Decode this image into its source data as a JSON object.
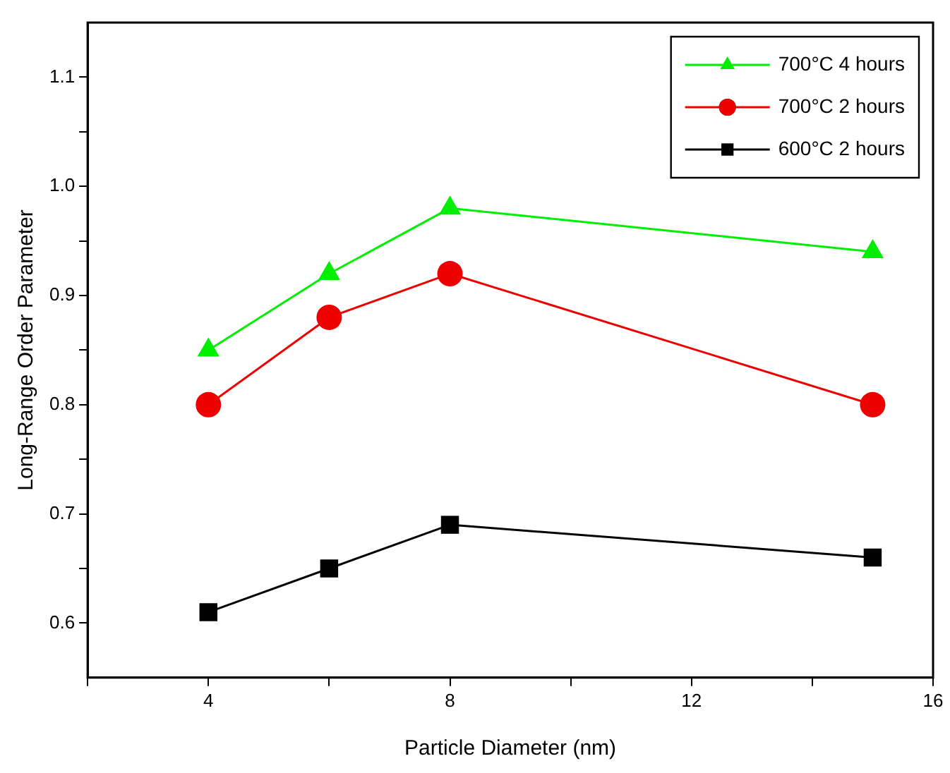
{
  "chart_data": {
    "type": "line",
    "xlabel": "Particle Diameter (nm)",
    "ylabel": "Long-Range Order Parameter",
    "x": [
      4,
      6,
      8,
      15
    ],
    "series": [
      {
        "name": "700°C 4 hours",
        "color": "#00ee00",
        "marker": "triangle",
        "values": [
          0.85,
          0.92,
          0.98,
          0.94
        ]
      },
      {
        "name": "700°C 2 hours",
        "color": "#ee0000",
        "marker": "circle",
        "values": [
          0.8,
          0.88,
          0.92,
          0.8
        ]
      },
      {
        "name": "600°C 2 hours",
        "color": "#000000",
        "marker": "square",
        "values": [
          0.61,
          0.65,
          0.69,
          0.66
        ]
      }
    ],
    "xlim": [
      2,
      16
    ],
    "xticks": [
      {
        "value": 2,
        "label": null
      },
      4,
      {
        "value": 6,
        "label": null
      },
      8,
      {
        "value": 10,
        "label": null
      },
      12,
      {
        "value": 14,
        "label": null
      },
      16
    ],
    "ylim": [
      0.55,
      1.15
    ],
    "yticks": [
      0.6,
      {
        "value": 0.65,
        "label": null
      },
      0.7,
      {
        "value": 0.75,
        "label": null
      },
      0.8,
      {
        "value": 0.85,
        "label": null
      },
      0.9,
      {
        "value": 0.95,
        "label": null
      },
      {
        "value": 1,
        "label": "1.0"
      },
      {
        "value": 1.05,
        "label": null
      },
      1.1
    ],
    "grid": false,
    "legend": "top right",
    "line_style": "solid"
  }
}
